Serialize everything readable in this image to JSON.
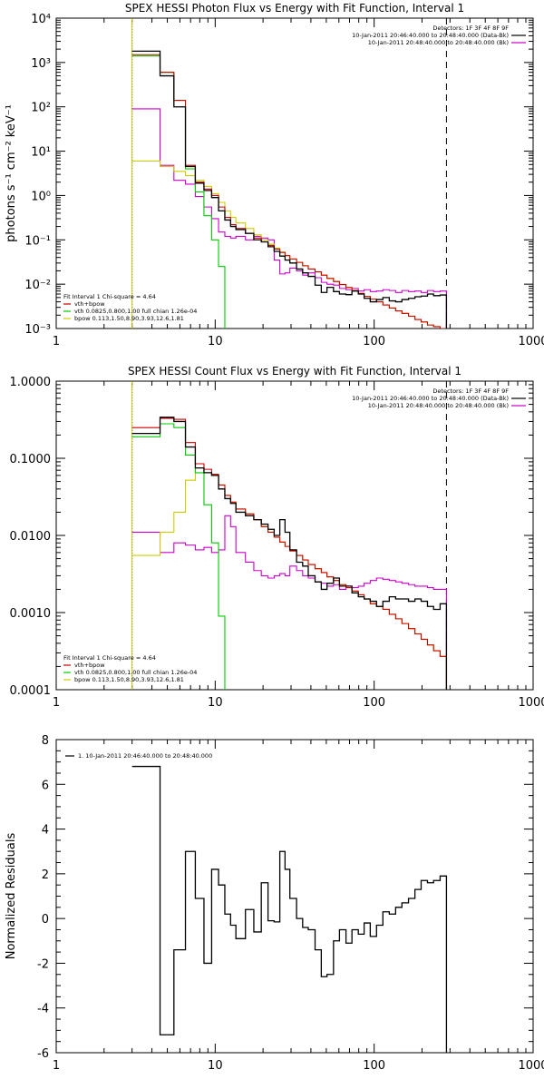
{
  "colors": {
    "data": "#000000",
    "total": "#cc0000",
    "vth": "#00cc00",
    "bpow": "#cccc00",
    "bk": "#cc00cc",
    "vline": "#000000"
  },
  "chart_data": [
    {
      "type": "line",
      "title": "SPEX HESSI Photon Flux vs Energy with Fit Function, Interval 1",
      "xlabel": "",
      "ylabel": "photons s⁻¹ cm⁻² keV⁻¹",
      "xscale": "log",
      "yscale": "log",
      "xlim": [
        1,
        1000
      ],
      "ylim": [
        0.001,
        10000
      ],
      "xticks": [
        "1",
        "10",
        "100",
        "1000"
      ],
      "yticks": [
        "10⁻³",
        "10⁻²",
        "10⁻¹",
        "10⁰",
        "10¹",
        "10²",
        "10³",
        "10⁴"
      ],
      "legend_top": [
        "Detectors: 1F 3F 4F 8F 9F",
        "10-Jan-2011 20:46:40.000 to 20:48:40.000 (Data-Bk)",
        "10-Jan-2011 20:48:40.000 to 20:48:40.000 (Bk)"
      ],
      "legend_bottom": [
        "Fit Interval 1    Chi-square = 4.64",
        "vth+bpow",
        "vth 0.0825,0.800,1.00  full chian 1.26e-04",
        "bpow 0.113,1.50,8.90,3.93,12.6,1.81"
      ],
      "edges": [
        3.0,
        3.5,
        4.5,
        5.5,
        6.5,
        7.5,
        8.5,
        9.5,
        10.5,
        11.5,
        12.5,
        13.5,
        15.5,
        17.5,
        19.5,
        21.5,
        23.5,
        25.5,
        27.5,
        29.5,
        32.5,
        35.5,
        38.5,
        42.5,
        46.5,
        50.5,
        55.5,
        60.5,
        66.5,
        72.5,
        79.5,
        86.5,
        94.5,
        103.5,
        113.5,
        124.5,
        136.5,
        149.5,
        164.5,
        180.5,
        197.5,
        216.5,
        236.5,
        260.0,
        285.0
      ],
      "series": [
        {
          "name": "Data-Bk",
          "role": "data",
          "values": [
            1800,
            1800,
            500,
            100,
            4.5,
            1.9,
            1.3,
            0.9,
            0.45,
            0.28,
            0.2,
            0.17,
            0.14,
            0.1,
            0.09,
            0.07,
            0.055,
            0.043,
            0.035,
            0.03,
            0.022,
            0.018,
            0.015,
            0.0095,
            0.0065,
            0.0085,
            0.0068,
            0.006,
            0.0058,
            0.007,
            0.006,
            0.0048,
            0.004,
            0.0045,
            0.005,
            0.0042,
            0.004,
            0.0045,
            0.0048,
            0.0052,
            0.0054,
            0.006,
            0.0055,
            0.0057
          ]
        },
        {
          "name": "vth+bpow",
          "role": "total",
          "values": [
            1500,
            1500,
            600,
            140,
            4.8,
            2.0,
            1.4,
            1.0,
            0.55,
            0.32,
            0.22,
            0.18,
            0.14,
            0.11,
            0.09,
            0.075,
            0.062,
            0.052,
            0.044,
            0.037,
            0.031,
            0.026,
            0.022,
            0.019,
            0.016,
            0.0135,
            0.0115,
            0.0098,
            0.0084,
            0.0072,
            0.0062,
            0.0053,
            0.0046,
            0.004,
            0.0034,
            0.0029,
            0.0025,
            0.0022,
            0.0019,
            0.0016,
            0.0014,
            0.0012,
            0.0011,
            0.001
          ]
        },
        {
          "name": "vth",
          "role": "vth",
          "values": [
            1400,
            1400,
            600,
            140,
            4.0,
            1.2,
            0.35,
            0.1,
            0.025,
            0.0009,
            0.0009,
            0.0009,
            0.0009,
            0.0009,
            0.0009,
            0.0009,
            0.0009,
            0.0009,
            0.0009,
            0.0009,
            0.0009,
            0.0009,
            0.0009,
            0.0009,
            0.0009,
            0.0009,
            0.0009,
            0.0009,
            0.0009,
            0.0009,
            0.0009,
            0.0009,
            0.0009,
            0.0009,
            0.0009,
            0.0009,
            0.0009,
            0.0009,
            0.0009,
            0.0009,
            0.0009,
            0.0009,
            0.0009,
            0.0009
          ]
        },
        {
          "name": "bpow",
          "role": "bpow",
          "values": [
            6.0,
            6.0,
            4.5,
            3.5,
            2.8,
            2.2,
            1.6,
            1.1,
            0.7,
            0.45,
            0.32,
            0.24,
            0.18,
            0.13,
            0.1,
            0.08,
            0.065,
            0.053,
            0.044,
            0.037,
            0.031,
            0.026,
            0.022,
            0.019,
            0.016,
            0.0135,
            0.0115,
            0.0098,
            0.0084,
            0.0072,
            0.0062,
            0.0053,
            0.0046,
            0.004,
            0.0034,
            0.0029,
            0.0025,
            0.0022,
            0.0019,
            0.0016,
            0.0014,
            0.0012,
            0.0011,
            0.001
          ]
        },
        {
          "name": "Bk",
          "role": "bk",
          "values": [
            90,
            90,
            4.8,
            2.2,
            1.8,
            0.95,
            0.55,
            0.3,
            0.15,
            0.12,
            0.11,
            0.12,
            0.1,
            0.12,
            0.11,
            0.1,
            0.035,
            0.017,
            0.018,
            0.023,
            0.02,
            0.016,
            0.018,
            0.014,
            0.011,
            0.01,
            0.0095,
            0.008,
            0.0075,
            0.008,
            0.007,
            0.0075,
            0.0068,
            0.007,
            0.0075,
            0.0072,
            0.0065,
            0.0072,
            0.0068,
            0.007,
            0.0065,
            0.0072,
            0.0068,
            0.007
          ]
        }
      ],
      "vlines": [
        {
          "x": 3.0,
          "style": "dotted",
          "role": "vline"
        },
        {
          "x": 3.0,
          "style": "solid",
          "role": "bpow"
        },
        {
          "x": 285.0,
          "style": "dashed",
          "role": "vline"
        }
      ]
    },
    {
      "type": "line",
      "title": "SPEX HESSI Count Flux vs Energy with Fit Function, Interval 1",
      "xlabel": "",
      "ylabel": "",
      "xscale": "log",
      "yscale": "log",
      "xlim": [
        1,
        1000
      ],
      "ylim": [
        0.0001,
        1.0
      ],
      "xticks": [
        "1",
        "10",
        "100",
        "1000"
      ],
      "yticks": [
        "0.0001",
        "0.0010",
        "0.0100",
        "0.1000",
        "1.0000"
      ],
      "legend_top": [
        "Detectors: 1F 3F 4F 8F 9F",
        "10-Jan-2011 20:46:40.000 to 20:48:40.000 (Data-Bk)",
        "10-Jan-2011 20:48:40.000 to 20:48:40.000 (Bk)"
      ],
      "legend_bottom": [
        "Fit Interval 1    Chi-square = 4.64",
        "vth+bpow",
        "vth 0.0825,0.800,1.00  full chian 1.26e-04",
        "bpow 0.113,1.50,8.90,3.93,12.6,1.81"
      ],
      "edges": [
        3.0,
        3.5,
        4.5,
        5.5,
        6.5,
        7.5,
        8.5,
        9.5,
        10.5,
        11.5,
        12.5,
        13.5,
        15.5,
        17.5,
        19.5,
        21.5,
        23.5,
        25.5,
        27.5,
        29.5,
        32.5,
        35.5,
        38.5,
        42.5,
        46.5,
        50.5,
        55.5,
        60.5,
        66.5,
        72.5,
        79.5,
        86.5,
        94.5,
        103.5,
        113.5,
        124.5,
        136.5,
        149.5,
        164.5,
        180.5,
        197.5,
        216.5,
        236.5,
        260.0,
        285.0
      ],
      "series": [
        {
          "name": "Data-Bk",
          "role": "data",
          "values": [
            0.21,
            0.21,
            0.34,
            0.3,
            0.14,
            0.075,
            0.065,
            0.06,
            0.04,
            0.03,
            0.026,
            0.02,
            0.018,
            0.016,
            0.014,
            0.012,
            0.01,
            0.016,
            0.011,
            0.0065,
            0.0045,
            0.004,
            0.003,
            0.0025,
            0.002,
            0.0024,
            0.0028,
            0.0022,
            0.0022,
            0.0018,
            0.0016,
            0.0015,
            0.0014,
            0.0012,
            0.0014,
            0.0016,
            0.0015,
            0.0015,
            0.0014,
            0.0015,
            0.0014,
            0.0012,
            0.0011,
            0.0013
          ]
        },
        {
          "name": "vth+bpow",
          "role": "total",
          "values": [
            0.25,
            0.25,
            0.33,
            0.32,
            0.16,
            0.085,
            0.072,
            0.062,
            0.045,
            0.033,
            0.027,
            0.022,
            0.019,
            0.016,
            0.013,
            0.011,
            0.0095,
            0.0082,
            0.0072,
            0.0063,
            0.0055,
            0.0048,
            0.0042,
            0.0037,
            0.0033,
            0.0029,
            0.0026,
            0.0023,
            0.0021,
            0.0019,
            0.0017,
            0.0015,
            0.0013,
            0.0012,
            0.0011,
            0.00095,
            0.00083,
            0.00072,
            0.00062,
            0.00053,
            0.00045,
            0.00038,
            0.00032,
            0.00027
          ]
        },
        {
          "name": "vth",
          "role": "vth",
          "values": [
            0.19,
            0.19,
            0.28,
            0.25,
            0.11,
            0.065,
            0.025,
            0.008,
            0.0009,
            9e-05,
            9e-05,
            9e-05,
            9e-05,
            9e-05,
            9e-05,
            9e-05,
            9e-05,
            9e-05,
            9e-05,
            9e-05,
            9e-05,
            9e-05,
            9e-05,
            9e-05,
            9e-05,
            9e-05,
            9e-05,
            9e-05,
            9e-05,
            9e-05,
            9e-05,
            9e-05,
            9e-05,
            9e-05,
            9e-05,
            9e-05,
            9e-05,
            9e-05,
            9e-05,
            9e-05,
            9e-05,
            9e-05,
            9e-05,
            9e-05
          ]
        },
        {
          "name": "bpow",
          "role": "bpow",
          "values": [
            0.0055,
            0.0055,
            0.011,
            0.02,
            0.052,
            0.075,
            0.065,
            0.062,
            0.045,
            0.033,
            0.027,
            0.022,
            0.019,
            0.016,
            0.013,
            0.011,
            0.0095,
            0.0082,
            0.0072,
            0.0063,
            0.0055,
            0.0048,
            0.0042,
            0.0037,
            0.0033,
            0.0029,
            0.0026,
            0.0023,
            0.0021,
            0.0019,
            0.0017,
            0.0015,
            0.0013,
            0.0012,
            0.0011,
            0.00095,
            0.00083,
            0.00072,
            0.00062,
            0.00053,
            0.00045,
            0.00038,
            0.00032,
            0.00027
          ]
        },
        {
          "name": "Bk",
          "role": "bk",
          "values": [
            0.011,
            0.011,
            0.006,
            0.008,
            0.0075,
            0.0065,
            0.007,
            0.006,
            0.0065,
            0.018,
            0.013,
            0.006,
            0.0045,
            0.0035,
            0.003,
            0.0028,
            0.003,
            0.0032,
            0.003,
            0.004,
            0.0035,
            0.003,
            0.0028,
            0.0025,
            0.0024,
            0.0022,
            0.0023,
            0.002,
            0.0022,
            0.0021,
            0.0022,
            0.0024,
            0.0026,
            0.0028,
            0.0027,
            0.0026,
            0.0025,
            0.0024,
            0.0023,
            0.0022,
            0.0022,
            0.0021,
            0.002,
            0.002
          ]
        }
      ],
      "vlines": [
        {
          "x": 3.0,
          "style": "dotted",
          "role": "vline"
        },
        {
          "x": 3.0,
          "style": "solid",
          "role": "bpow"
        },
        {
          "x": 285.0,
          "style": "dashed",
          "role": "vline"
        }
      ]
    },
    {
      "type": "line",
      "title": "",
      "xlabel": "",
      "ylabel": "Normalized Residuals",
      "xscale": "log",
      "yscale": "linear",
      "xlim": [
        1,
        1000
      ],
      "ylim": [
        -6,
        8
      ],
      "xticks": [
        "1",
        "10",
        "100",
        "1000"
      ],
      "yticks": [
        "-6",
        "-4",
        "-2",
        "0",
        "2",
        "4",
        "6",
        "8"
      ],
      "legend_top": [
        "1. 10-Jan-2011 20:46:40.000 to 20:48:40.000"
      ],
      "edges": [
        3.0,
        3.5,
        4.5,
        5.5,
        6.5,
        7.5,
        8.5,
        9.5,
        10.5,
        11.5,
        12.5,
        13.5,
        15.5,
        17.5,
        19.5,
        21.5,
        23.5,
        25.5,
        27.5,
        29.5,
        32.5,
        35.5,
        38.5,
        42.5,
        46.5,
        50.5,
        55.5,
        60.5,
        66.5,
        72.5,
        79.5,
        86.5,
        94.5,
        103.5,
        113.5,
        124.5,
        136.5,
        149.5,
        164.5,
        180.5,
        197.5,
        216.5,
        236.5,
        260.0,
        285.0
      ],
      "series": [
        {
          "name": "residuals",
          "role": "data",
          "values": [
            6.8,
            6.8,
            -5.2,
            -1.4,
            3.0,
            0.9,
            -2.0,
            2.2,
            1.5,
            0.2,
            -0.3,
            -0.9,
            0.4,
            -0.6,
            1.6,
            -0.1,
            -0.15,
            3.0,
            2.2,
            0.9,
            0.0,
            -0.4,
            -0.5,
            -1.4,
            -2.6,
            -2.5,
            -1.0,
            -0.5,
            -1.1,
            -0.5,
            -0.7,
            -0.2,
            -0.8,
            -0.3,
            0.3,
            0.2,
            0.5,
            0.7,
            0.9,
            1.3,
            1.7,
            1.6,
            1.7,
            1.9
          ]
        }
      ],
      "vlines": []
    }
  ]
}
